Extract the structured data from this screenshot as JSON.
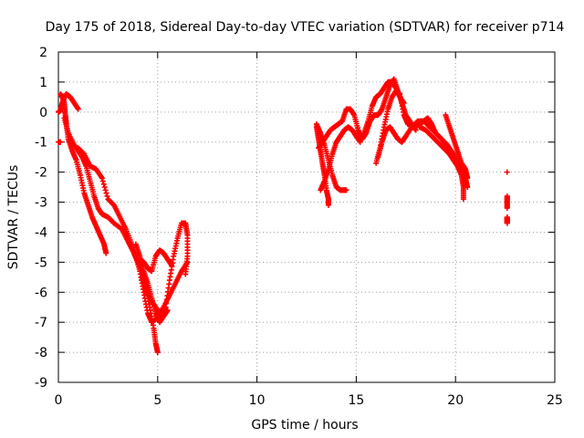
{
  "chart_data": {
    "type": "scatter",
    "title": "Day 175 of 2018, Sidereal Day-to-day VTEC variation (SDTVAR) for receiver p714",
    "xlabel": "GPS time / hours",
    "ylabel": "SDTVAR / TECUs",
    "xlim": [
      0,
      25
    ],
    "ylim": [
      -9,
      2
    ],
    "xticks": [
      0,
      5,
      10,
      15,
      20,
      25
    ],
    "yticks": [
      -9,
      -8,
      -7,
      -6,
      -5,
      -4,
      -3,
      -2,
      -1,
      0,
      1,
      2
    ],
    "grid": true,
    "marker": "plus",
    "series": [
      {
        "name": "SDTVAR",
        "color": "#ff0000",
        "paths": [
          [
            [
              0.0,
              -1.0
            ],
            [
              0.1,
              -1.0
            ]
          ],
          [
            [
              0.1,
              0.6
            ],
            [
              0.2,
              0.5
            ],
            [
              0.3,
              0.3
            ],
            [
              0.35,
              -0.1
            ],
            [
              0.4,
              -0.4
            ],
            [
              0.5,
              -0.9
            ],
            [
              0.7,
              -1.3
            ],
            [
              0.9,
              -1.6
            ],
            [
              1.1,
              -2.1
            ],
            [
              1.3,
              -2.7
            ],
            [
              1.5,
              -3.1
            ],
            [
              1.7,
              -3.5
            ],
            [
              1.9,
              -3.8
            ],
            [
              2.1,
              -4.1
            ],
            [
              2.3,
              -4.4
            ],
            [
              2.4,
              -4.7
            ]
          ],
          [
            [
              0.0,
              0.0
            ],
            [
              0.1,
              0.05
            ],
            [
              0.2,
              0.3
            ],
            [
              0.3,
              0.5
            ],
            [
              0.4,
              0.6
            ],
            [
              0.6,
              0.5
            ],
            [
              0.8,
              0.3
            ],
            [
              1.0,
              0.1
            ]
          ],
          [
            [
              0.3,
              -0.2
            ],
            [
              0.5,
              -0.7
            ],
            [
              0.8,
              -1.1
            ],
            [
              1.0,
              -1.3
            ],
            [
              1.2,
              -1.5
            ],
            [
              1.4,
              -1.8
            ],
            [
              1.6,
              -2.3
            ],
            [
              1.8,
              -2.8
            ],
            [
              2.0,
              -3.2
            ],
            [
              2.2,
              -3.4
            ],
            [
              2.5,
              -3.5
            ],
            [
              2.8,
              -3.7
            ],
            [
              3.2,
              -3.9
            ],
            [
              3.5,
              -4.3
            ],
            [
              3.8,
              -4.7
            ],
            [
              4.0,
              -5.0
            ],
            [
              4.2,
              -5.3
            ],
            [
              4.4,
              -5.8
            ],
            [
              4.6,
              -6.5
            ],
            [
              4.8,
              -7.2
            ],
            [
              4.9,
              -7.7
            ],
            [
              5.0,
              -8.0
            ]
          ],
          [
            [
              1.0,
              -1.2
            ],
            [
              1.3,
              -1.4
            ],
            [
              1.6,
              -1.8
            ],
            [
              1.9,
              -1.9
            ],
            [
              2.2,
              -2.2
            ],
            [
              2.5,
              -2.9
            ],
            [
              2.8,
              -3.1
            ],
            [
              3.1,
              -3.5
            ],
            [
              3.4,
              -3.9
            ],
            [
              3.7,
              -4.4
            ],
            [
              3.9,
              -4.8
            ],
            [
              4.1,
              -5.3
            ],
            [
              4.3,
              -6.0
            ],
            [
              4.5,
              -6.7
            ],
            [
              4.7,
              -7.0
            ],
            [
              4.9,
              -6.9
            ],
            [
              5.1,
              -6.7
            ],
            [
              5.3,
              -6.5
            ],
            [
              5.6,
              -6.1
            ],
            [
              5.9,
              -5.7
            ],
            [
              6.2,
              -5.3
            ],
            [
              6.5,
              -5.0
            ]
          ],
          [
            [
              4.1,
              -4.9
            ],
            [
              4.3,
              -5.0
            ],
            [
              4.5,
              -5.2
            ],
            [
              4.7,
              -5.3
            ],
            [
              4.9,
              -4.8
            ],
            [
              5.1,
              -4.6
            ],
            [
              5.3,
              -4.7
            ],
            [
              5.5,
              -4.9
            ],
            [
              5.7,
              -5.1
            ]
          ],
          [
            [
              4.2,
              -5.5
            ],
            [
              4.4,
              -5.9
            ],
            [
              4.6,
              -6.2
            ],
            [
              4.8,
              -6.4
            ],
            [
              5.0,
              -6.6
            ],
            [
              5.2,
              -6.8
            ],
            [
              5.4,
              -6.5
            ],
            [
              5.6,
              -5.6
            ],
            [
              5.8,
              -4.8
            ],
            [
              6.0,
              -4.2
            ],
            [
              6.2,
              -3.7
            ],
            [
              6.4,
              -3.7
            ],
            [
              6.5,
              -4.1
            ],
            [
              6.5,
              -4.8
            ],
            [
              6.4,
              -5.4
            ]
          ],
          [
            [
              3.9,
              -4.4
            ],
            [
              4.1,
              -4.8
            ],
            [
              4.3,
              -5.3
            ],
            [
              4.5,
              -5.7
            ],
            [
              4.7,
              -6.2
            ],
            [
              4.9,
              -6.7
            ],
            [
              5.1,
              -7.0
            ],
            [
              5.3,
              -6.8
            ],
            [
              5.5,
              -6.6
            ]
          ],
          [
            [
              13.0,
              -0.5
            ],
            [
              13.1,
              -0.9
            ],
            [
              13.2,
              -1.3
            ],
            [
              13.3,
              -1.7
            ],
            [
              13.4,
              -2.1
            ],
            [
              13.5,
              -2.6
            ],
            [
              13.6,
              -2.9
            ],
            [
              13.6,
              -3.1
            ]
          ],
          [
            [
              13.0,
              -0.4
            ],
            [
              13.2,
              -0.7
            ],
            [
              13.4,
              -1.1
            ],
            [
              13.6,
              -1.6
            ],
            [
              13.8,
              -2.1
            ],
            [
              14.0,
              -2.5
            ],
            [
              14.2,
              -2.6
            ],
            [
              14.4,
              -2.6
            ],
            [
              14.5,
              -2.6
            ]
          ],
          [
            [
              13.2,
              -2.6
            ],
            [
              13.4,
              -2.3
            ],
            [
              13.6,
              -1.9
            ],
            [
              13.8,
              -1.4
            ],
            [
              14.0,
              -1.0
            ],
            [
              14.2,
              -0.8
            ],
            [
              14.4,
              -0.6
            ],
            [
              14.6,
              -0.5
            ],
            [
              14.8,
              -0.6
            ],
            [
              15.0,
              -0.8
            ],
            [
              15.2,
              -1.0
            ]
          ],
          [
            [
              13.1,
              -1.2
            ],
            [
              13.3,
              -1.0
            ],
            [
              13.5,
              -0.8
            ],
            [
              13.7,
              -0.6
            ],
            [
              13.9,
              -0.5
            ],
            [
              14.1,
              -0.4
            ],
            [
              14.3,
              -0.3
            ],
            [
              14.5,
              0.1
            ],
            [
              14.7,
              0.1
            ],
            [
              14.9,
              -0.1
            ],
            [
              15.1,
              -0.6
            ],
            [
              15.3,
              -0.9
            ],
            [
              15.5,
              -0.7
            ],
            [
              15.7,
              -0.3
            ],
            [
              15.9,
              -0.1
            ],
            [
              16.1,
              -0.1
            ],
            [
              16.3,
              0.1
            ],
            [
              16.5,
              0.5
            ],
            [
              16.7,
              0.9
            ],
            [
              16.9,
              1.1
            ],
            [
              17.1,
              0.7
            ],
            [
              17.3,
              0.3
            ],
            [
              17.5,
              -0.1
            ],
            [
              17.8,
              -0.4
            ],
            [
              18.0,
              -0.6
            ]
          ],
          [
            [
              15.4,
              -0.7
            ],
            [
              15.6,
              -0.3
            ],
            [
              15.8,
              0.2
            ],
            [
              16.0,
              0.5
            ],
            [
              16.2,
              0.6
            ],
            [
              16.4,
              0.8
            ],
            [
              16.6,
              1.0
            ],
            [
              16.8,
              1.0
            ],
            [
              17.0,
              0.8
            ],
            [
              17.2,
              0.5
            ],
            [
              17.4,
              0.3
            ]
          ],
          [
            [
              16.0,
              -1.7
            ],
            [
              16.2,
              -1.2
            ],
            [
              16.4,
              -0.5
            ],
            [
              16.6,
              0.1
            ],
            [
              16.8,
              0.5
            ],
            [
              17.0,
              0.7
            ],
            [
              17.2,
              0.6
            ],
            [
              17.4,
              -0.1
            ],
            [
              17.6,
              -0.4
            ],
            [
              17.9,
              -0.5
            ],
            [
              18.2,
              -0.4
            ],
            [
              18.4,
              -0.3
            ],
            [
              18.6,
              -0.2
            ],
            [
              18.8,
              -0.4
            ],
            [
              19.0,
              -0.7
            ],
            [
              19.3,
              -0.9
            ],
            [
              19.6,
              -1.1
            ],
            [
              19.9,
              -1.4
            ],
            [
              20.1,
              -1.7
            ],
            [
              20.3,
              -1.9
            ],
            [
              20.5,
              -2.2
            ],
            [
              20.6,
              -2.5
            ]
          ],
          [
            [
              16.1,
              -1.5
            ],
            [
              16.3,
              -1.0
            ],
            [
              16.5,
              -0.6
            ],
            [
              16.7,
              -0.5
            ],
            [
              16.9,
              -0.7
            ],
            [
              17.1,
              -0.9
            ],
            [
              17.3,
              -1.0
            ],
            [
              17.5,
              -0.8
            ],
            [
              17.8,
              -0.5
            ],
            [
              18.1,
              -0.3
            ],
            [
              18.4,
              -0.3
            ],
            [
              18.7,
              -0.5
            ],
            [
              19.0,
              -0.7
            ],
            [
              19.3,
              -0.9
            ],
            [
              19.6,
              -1.2
            ],
            [
              19.9,
              -1.6
            ],
            [
              20.1,
              -1.8
            ],
            [
              20.3,
              -2.1
            ],
            [
              20.4,
              -2.5
            ],
            [
              20.4,
              -2.9
            ]
          ],
          [
            [
              18.2,
              -0.5
            ],
            [
              18.5,
              -0.6
            ],
            [
              18.8,
              -0.8
            ],
            [
              19.1,
              -1.0
            ],
            [
              19.4,
              -1.2
            ],
            [
              19.7,
              -1.4
            ],
            [
              19.9,
              -1.6
            ]
          ],
          [
            [
              19.5,
              -0.1
            ],
            [
              19.7,
              -0.5
            ],
            [
              19.9,
              -0.9
            ],
            [
              20.1,
              -1.3
            ],
            [
              20.3,
              -1.7
            ],
            [
              20.5,
              -1.9
            ],
            [
              20.6,
              -2.2
            ]
          ],
          [
            [
              22.6,
              -2.0
            ]
          ],
          [
            [
              22.6,
              -2.8
            ],
            [
              22.6,
              -3.0
            ],
            [
              22.6,
              -3.2
            ]
          ],
          [
            [
              22.6,
              -3.5
            ],
            [
              22.6,
              -3.6
            ],
            [
              22.6,
              -3.7
            ]
          ]
        ]
      }
    ]
  }
}
